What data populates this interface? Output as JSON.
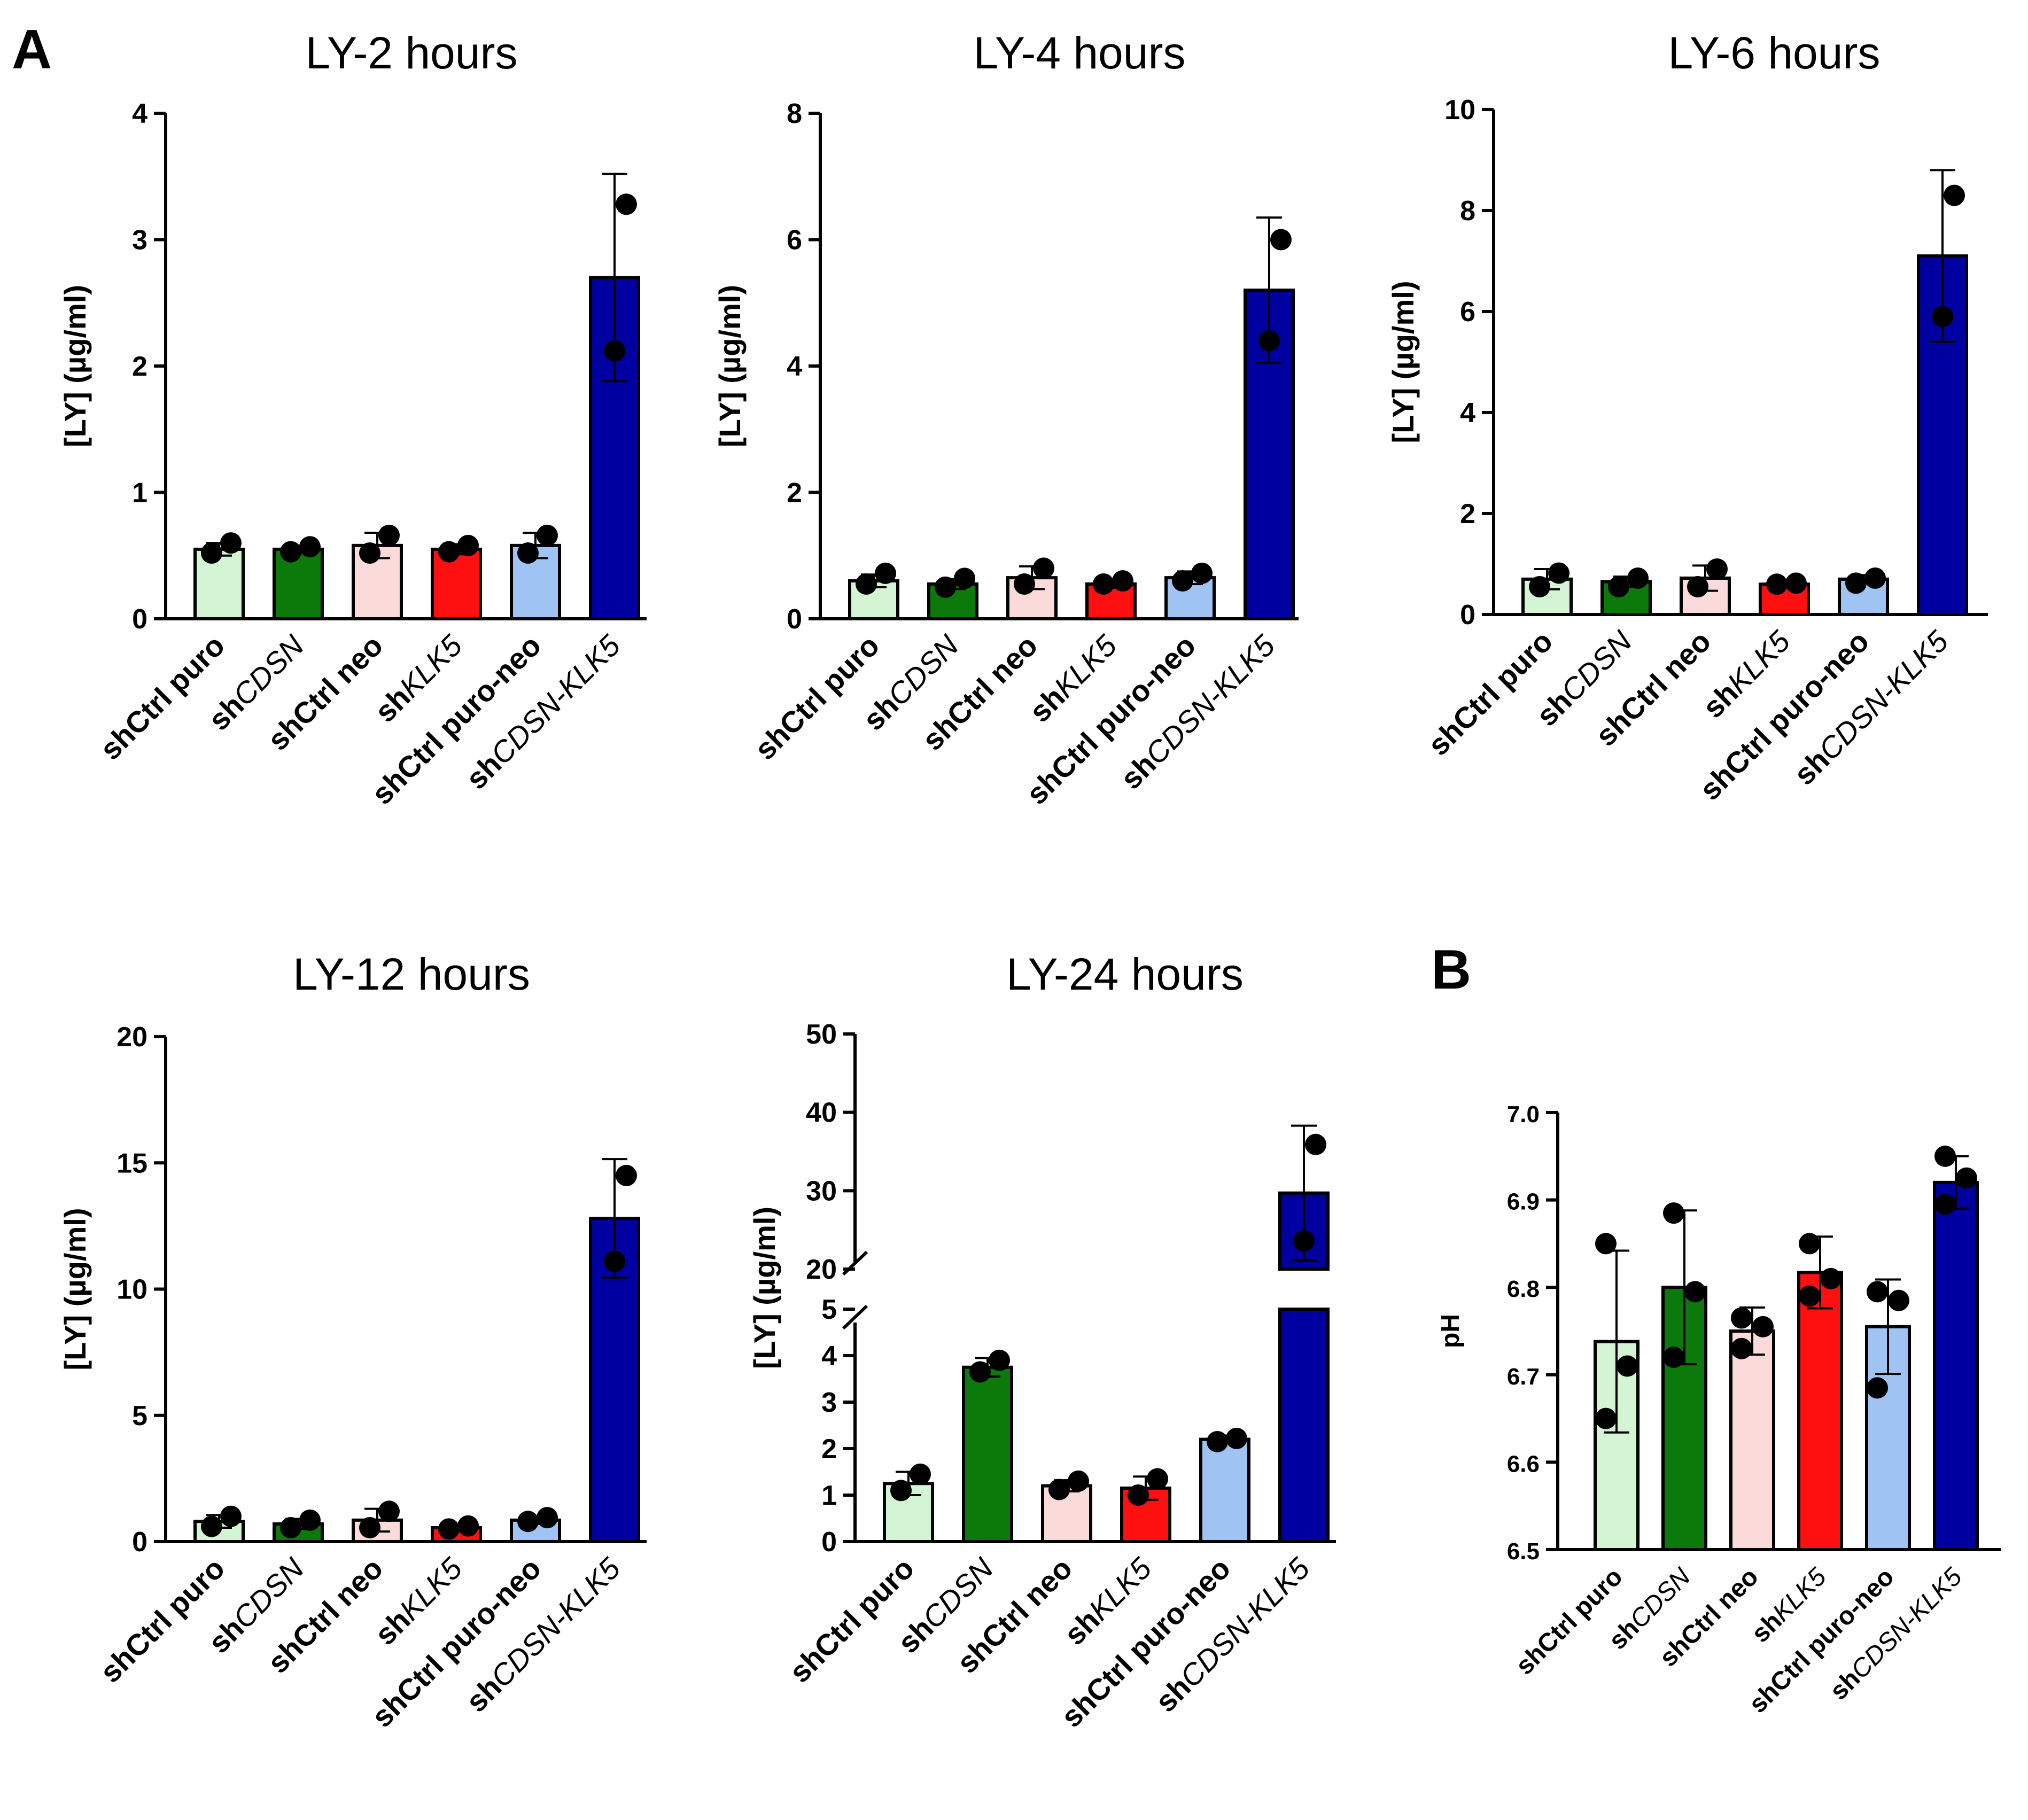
{
  "panel_labels": {
    "a": "A",
    "b": "B"
  },
  "colors": {
    "shCtrl_puro": "#d4f5d4",
    "shCDSN": "#0b7a0b",
    "shCtrl_neo": "#fbdada",
    "shKLK5": "#ff1010",
    "shCtrl_puro_neo": "#9fc3f2",
    "shCDSN_KLK5": "#0000a0",
    "axis": "#000000"
  },
  "category_labels": [
    [
      {
        "t": "shCtrl puro",
        "i": false
      }
    ],
    [
      {
        "t": "sh",
        "i": false
      },
      {
        "t": "CDSN",
        "i": true
      }
    ],
    [
      {
        "t": "shCtrl neo",
        "i": false
      }
    ],
    [
      {
        "t": "sh",
        "i": false
      },
      {
        "t": "KLK5",
        "i": true
      }
    ],
    [
      {
        "t": "shCtrl puro-neo",
        "i": false
      }
    ],
    [
      {
        "t": "sh",
        "i": false
      },
      {
        "t": "CDSN-KLK5",
        "i": true
      }
    ]
  ],
  "chart_data": [
    {
      "id": "ly2",
      "type": "bar",
      "title": "LY-2 hours",
      "ylabel": "[LY] (µg/ml)",
      "ylim": [
        0,
        4
      ],
      "yticks": [
        0,
        1,
        2,
        3,
        4
      ],
      "ytick_labels": [
        "0",
        "1",
        "2",
        "3",
        "4"
      ],
      "categories": [
        "shCtrl puro",
        "shCDSN",
        "shCtrl neo",
        "shKLK5",
        "shCtrl puro-neo",
        "shCDSN-KLK5"
      ],
      "values": [
        0.55,
        0.55,
        0.58,
        0.55,
        0.58,
        2.7
      ],
      "errors": [
        0.05,
        0.03,
        0.1,
        0.04,
        0.1,
        0.82
      ],
      "points": [
        [
          0.52,
          0.6
        ],
        [
          0.53,
          0.57
        ],
        [
          0.52,
          0.66
        ],
        [
          0.53,
          0.58
        ],
        [
          0.52,
          0.66
        ],
        [
          3.28,
          2.12
        ]
      ]
    },
    {
      "id": "ly4",
      "type": "bar",
      "title": "LY-4 hours",
      "ylabel": "[LY] (µg/ml)",
      "ylim": [
        0,
        8
      ],
      "yticks": [
        0,
        2,
        4,
        6,
        8
      ],
      "ytick_labels": [
        "0",
        "2",
        "4",
        "6",
        "8"
      ],
      "categories": [
        "shCtrl puro",
        "shCDSN",
        "shCtrl neo",
        "shKLK5",
        "shCtrl puro-neo",
        "shCDSN-KLK5"
      ],
      "values": [
        0.6,
        0.55,
        0.65,
        0.55,
        0.65,
        5.2
      ],
      "errors": [
        0.1,
        0.08,
        0.18,
        0.06,
        0.1,
        1.15
      ],
      "points": [
        [
          0.55,
          0.72
        ],
        [
          0.5,
          0.64
        ],
        [
          0.55,
          0.8
        ],
        [
          0.55,
          0.6
        ],
        [
          0.6,
          0.72
        ],
        [
          6.0,
          4.4
        ]
      ]
    },
    {
      "id": "ly6",
      "type": "bar",
      "title": "LY-6 hours",
      "ylabel": "[LY] (µg/ml)",
      "ylim": [
        0,
        10
      ],
      "yticks": [
        0,
        2,
        4,
        6,
        8,
        10
      ],
      "ytick_labels": [
        "0",
        "2",
        "4",
        "6",
        "8",
        "10"
      ],
      "categories": [
        "shCtrl puro",
        "shCDSN",
        "shCtrl neo",
        "shKLK5",
        "shCtrl puro-neo",
        "shCDSN-KLK5"
      ],
      "values": [
        0.7,
        0.65,
        0.72,
        0.6,
        0.7,
        7.1
      ],
      "errors": [
        0.2,
        0.1,
        0.25,
        0.06,
        0.08,
        1.7
      ],
      "points": [
        [
          0.55,
          0.82
        ],
        [
          0.55,
          0.72
        ],
        [
          0.55,
          0.9
        ],
        [
          0.6,
          0.62
        ],
        [
          0.62,
          0.72
        ],
        [
          8.3,
          5.9
        ]
      ]
    },
    {
      "id": "ly12",
      "type": "bar",
      "title": "LY-12 hours",
      "ylabel": "[LY] (µg/ml)",
      "ylim": [
        0,
        20
      ],
      "yticks": [
        0,
        5,
        10,
        15,
        20
      ],
      "ytick_labels": [
        "0",
        "5",
        "10",
        "15",
        "20"
      ],
      "categories": [
        "shCtrl puro",
        "shCDSN",
        "shCtrl neo",
        "shKLK5",
        "shCtrl puro-neo",
        "shCDSN-KLK5"
      ],
      "values": [
        0.8,
        0.7,
        0.85,
        0.55,
        0.85,
        12.8
      ],
      "errors": [
        0.25,
        0.2,
        0.45,
        0.1,
        0.15,
        2.35
      ],
      "points": [
        [
          0.6,
          1.0
        ],
        [
          0.55,
          0.85
        ],
        [
          0.55,
          1.2
        ],
        [
          0.5,
          0.62
        ],
        [
          0.8,
          0.95
        ],
        [
          14.5,
          11.1
        ]
      ]
    },
    {
      "id": "ly24",
      "type": "bar",
      "title": "LY-24 hours",
      "ylabel": "[LY] (µg/ml)",
      "broken_axis": true,
      "ylim_lower": [
        0,
        5
      ],
      "ylim_upper": [
        20,
        50
      ],
      "yticks": [
        0,
        1,
        2,
        3,
        4,
        5,
        20,
        30,
        40,
        50
      ],
      "ytick_labels": [
        "0",
        "1",
        "2",
        "3",
        "4",
        "5",
        "20",
        "30",
        "40",
        "50"
      ],
      "categories": [
        "shCtrl puro",
        "shCDSN",
        "shCtrl neo",
        "shKLK5",
        "shCtrl puro-neo",
        "shCDSN-KLK5"
      ],
      "values": [
        1.25,
        3.75,
        1.2,
        1.15,
        2.2,
        29.7
      ],
      "errors": [
        0.25,
        0.2,
        0.12,
        0.25,
        0.08,
        8.6
      ],
      "points": [
        [
          1.1,
          1.45
        ],
        [
          3.65,
          3.9
        ],
        [
          1.12,
          1.3
        ],
        [
          1.0,
          1.35
        ],
        [
          2.15,
          2.22
        ],
        [
          35.9,
          23.6
        ]
      ]
    },
    {
      "id": "ph",
      "type": "bar",
      "title": "",
      "ylabel": "pH",
      "ylim": [
        6.5,
        7.0
      ],
      "yticks": [
        6.5,
        6.6,
        6.7,
        6.8,
        6.9,
        7.0
      ],
      "ytick_labels": [
        "6.5",
        "6.6",
        "6.7",
        "6.8",
        "6.9",
        "7.0"
      ],
      "categories": [
        "shCtrl puro",
        "shCDSN",
        "shCtrl neo",
        "shKLK5",
        "shCtrl puro-neo",
        "shCDSN-KLK5"
      ],
      "values": [
        6.738,
        6.8,
        6.75,
        6.817,
        6.755,
        6.92
      ],
      "errors": [
        0.104,
        0.088,
        0.027,
        0.041,
        0.054,
        0.03
      ],
      "points": [
        [
          6.85,
          6.71,
          6.65
        ],
        [
          6.885,
          6.795,
          6.72
        ],
        [
          6.765,
          6.755,
          6.73
        ],
        [
          6.85,
          6.81,
          6.79
        ],
        [
          6.795,
          6.785,
          6.685
        ],
        [
          6.95,
          6.925,
          6.895
        ]
      ]
    }
  ]
}
